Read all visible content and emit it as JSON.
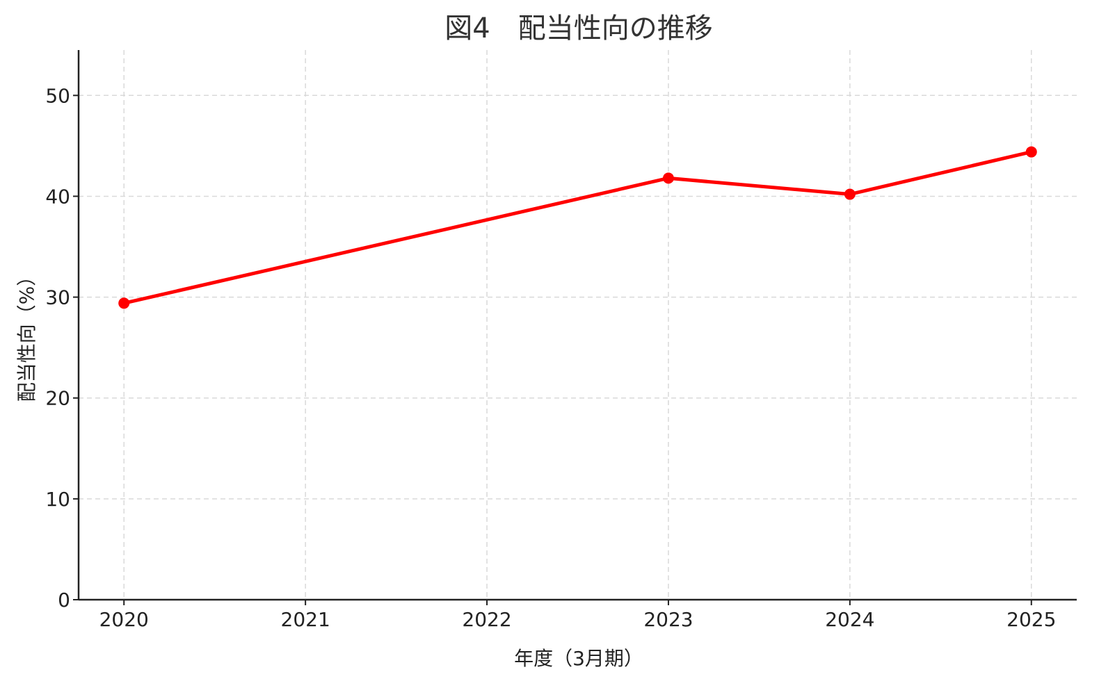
{
  "chart_data": {
    "type": "line",
    "title": "図4　配当性向の推移",
    "xlabel": "年度（3月期）",
    "ylabel": "配当性向（%）",
    "x_ticks": [
      "2020",
      "2021",
      "2022",
      "2023",
      "2024",
      "2025"
    ],
    "xlim": [
      2019.75,
      2025.25
    ],
    "ylim": [
      0,
      54.5
    ],
    "y_ticks": [
      0,
      10,
      20,
      30,
      40,
      50
    ],
    "grid": true,
    "series": [
      {
        "color": "#ff0000",
        "points": [
          {
            "x": 2020,
            "y": 29.4
          },
          {
            "x": 2023,
            "y": 41.8
          },
          {
            "x": 2024,
            "y": 40.2
          },
          {
            "x": 2025,
            "y": 44.4
          }
        ]
      }
    ]
  }
}
